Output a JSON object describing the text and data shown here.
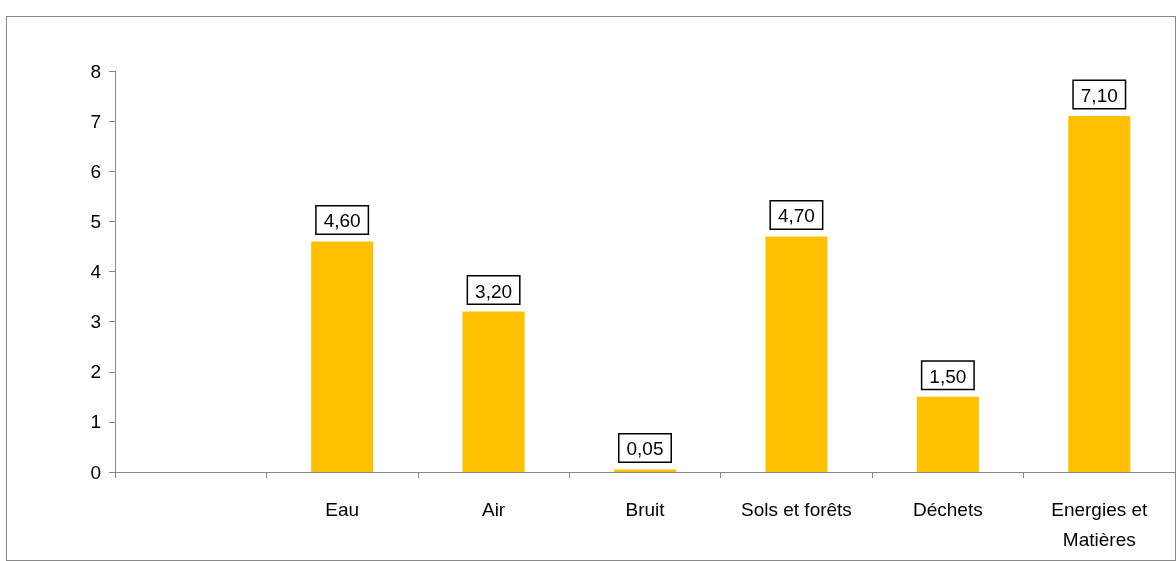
{
  "chart_data": {
    "type": "bar",
    "categories": [
      null,
      "Eau",
      "Air",
      "Bruit",
      "Sols et forêts",
      "Déchets",
      "Energies et\nMatières"
    ],
    "values": [
      null,
      4.6,
      3.2,
      0.05,
      4.7,
      1.5,
      7.1
    ],
    "value_labels": [
      null,
      "4,60",
      "3,20",
      "0,05",
      "4,70",
      "1,50",
      "7,10"
    ],
    "color": "#ffc000",
    "ylim": [
      0,
      8
    ],
    "yticks": [
      0,
      1,
      2,
      3,
      4,
      5,
      6,
      7,
      8
    ],
    "grid": false
  }
}
